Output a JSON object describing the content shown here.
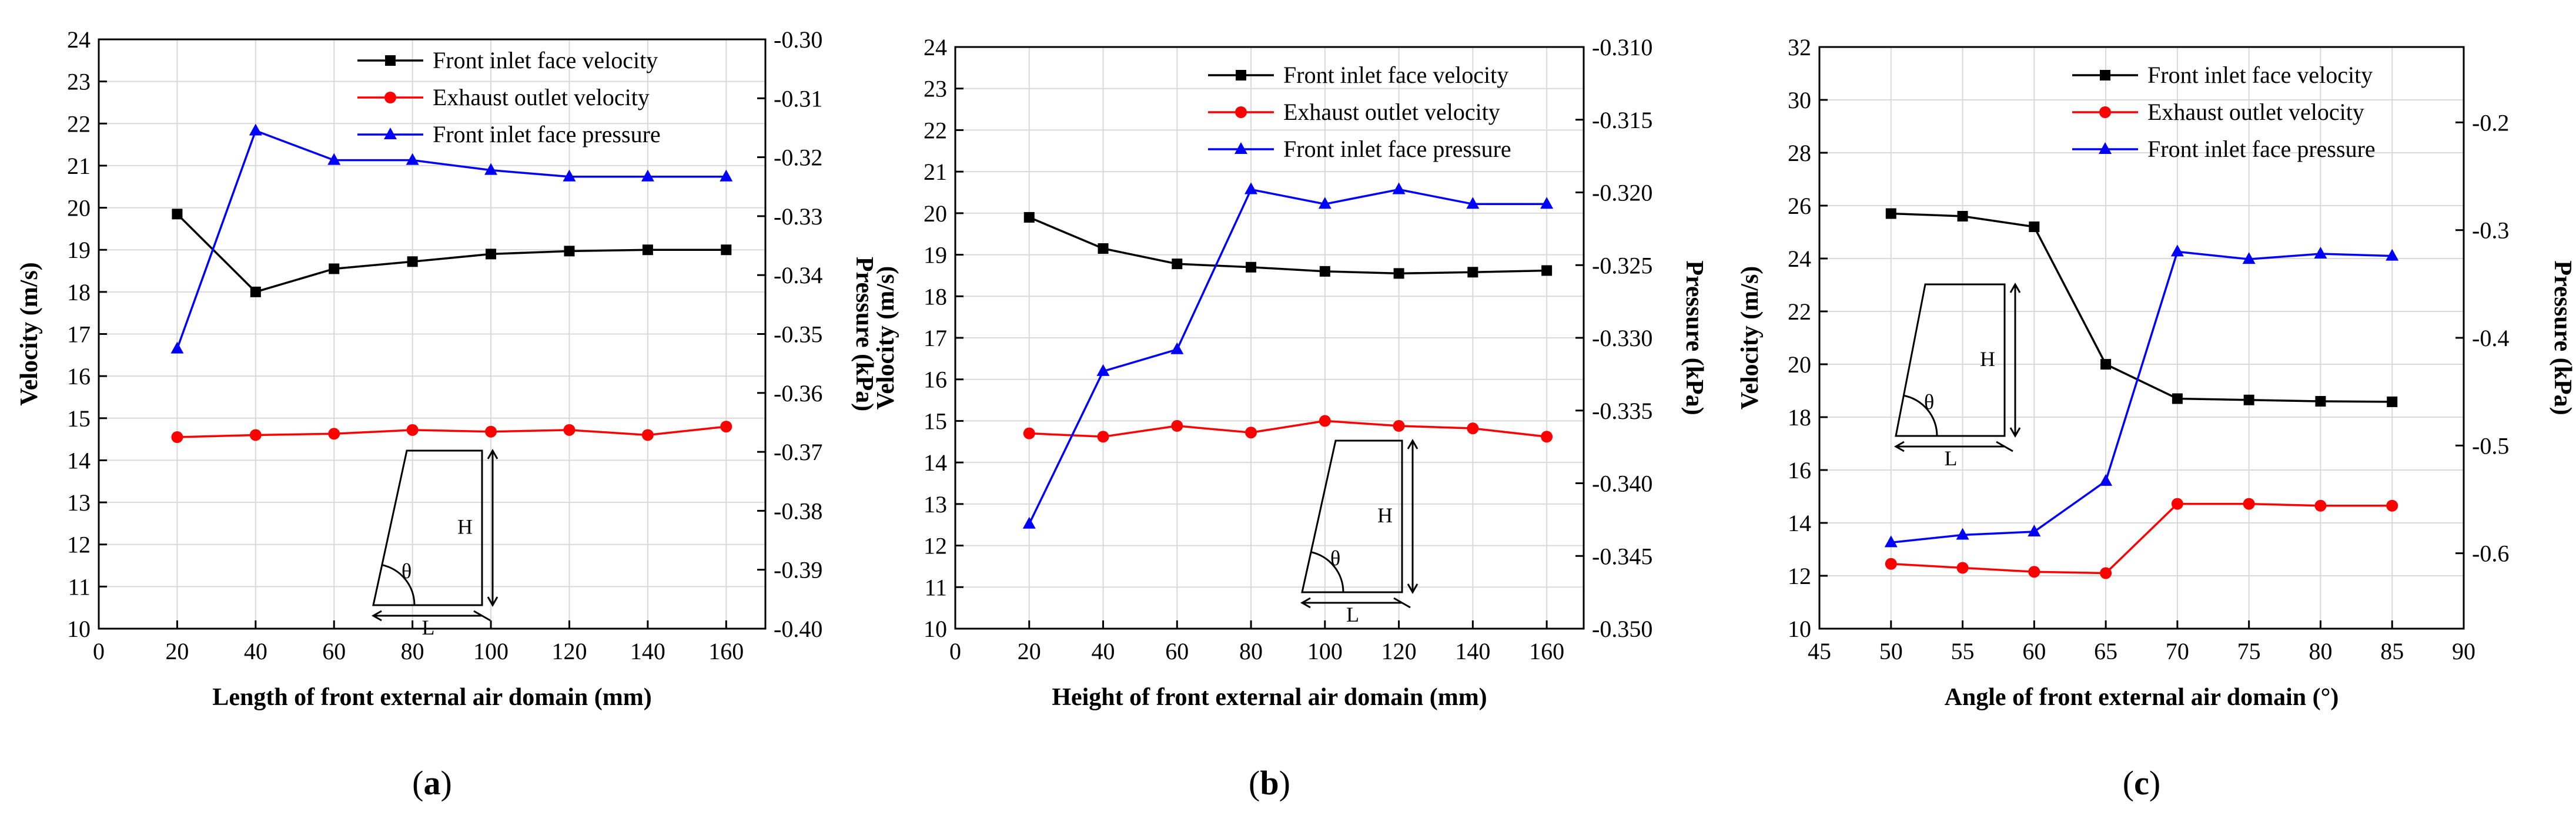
{
  "figure": {
    "panel_labels": [
      {
        "open": "(",
        "letter": "a",
        "close": ")"
      },
      {
        "open": "(",
        "letter": "b",
        "close": ")"
      },
      {
        "open": "(",
        "letter": "c",
        "close": ")"
      }
    ],
    "inset_labels": {
      "height": "H",
      "length": "L",
      "angle": "θ"
    }
  },
  "colors": {
    "front_inlet_velocity": "#000000",
    "exhaust_outlet_velocity": "#ff0000",
    "front_inlet_pressure": "#0000ff",
    "grid": "#d9d9d9"
  },
  "chart_data": [
    {
      "type": "line",
      "panel": "a",
      "xlabel": "Length of front external air domain (mm)",
      "ylabel": "Velocity (m/s)",
      "y2label": "Pressure (kPa)",
      "xlim": [
        0,
        170
      ],
      "ylim": [
        10,
        24
      ],
      "y2lim": [
        -0.4,
        -0.3
      ],
      "xticks": [
        "0",
        "20",
        "40",
        "60",
        "80",
        "100",
        "120",
        "140",
        "160"
      ],
      "yticks": [
        "10",
        "11",
        "12",
        "13",
        "14",
        "15",
        "16",
        "17",
        "18",
        "19",
        "20",
        "21",
        "22",
        "23",
        "24"
      ],
      "y2ticks": [
        "-0.40",
        "-0.39",
        "-0.38",
        "-0.37",
        "-0.36",
        "-0.35",
        "-0.34",
        "-0.33",
        "-0.32",
        "-0.31",
        "-0.30"
      ],
      "x": [
        20,
        40,
        60,
        80,
        100,
        120,
        140,
        160
      ],
      "series": [
        {
          "name": "Front inlet face velocity",
          "axis": "left",
          "marker": "square",
          "values": [
            19.85,
            18.0,
            18.55,
            18.72,
            18.9,
            18.97,
            19.0,
            19.0
          ]
        },
        {
          "name": "Exhaust outlet velocity",
          "axis": "left",
          "marker": "circle",
          "values": [
            14.55,
            14.6,
            14.63,
            14.72,
            14.68,
            14.72,
            14.6,
            14.8
          ]
        },
        {
          "name": "Front inlet face pressure",
          "axis": "right",
          "marker": "triangle",
          "values": [
            -0.3525,
            -0.3155,
            -0.3205,
            -0.3205,
            -0.3222,
            -0.3233,
            -0.3233,
            -0.3233
          ]
        }
      ]
    },
    {
      "type": "line",
      "panel": "b",
      "xlabel": "Height of front external air domain (mm)",
      "ylabel": "Velocity (m/s)",
      "y2label": "Pressure (kPa)",
      "xlim": [
        0,
        170
      ],
      "ylim": [
        10,
        24
      ],
      "y2lim": [
        -0.35,
        -0.31
      ],
      "xticks": [
        "0",
        "20",
        "40",
        "60",
        "80",
        "100",
        "120",
        "140",
        "160"
      ],
      "yticks": [
        "10",
        "11",
        "12",
        "13",
        "14",
        "15",
        "16",
        "17",
        "18",
        "19",
        "20",
        "21",
        "22",
        "23",
        "24"
      ],
      "y2ticks": [
        "-0.350",
        "-0.345",
        "-0.340",
        "-0.335",
        "-0.330",
        "-0.325",
        "-0.320",
        "-0.315",
        "-0.310"
      ],
      "x": [
        20,
        40,
        60,
        80,
        100,
        120,
        140,
        160
      ],
      "series": [
        {
          "name": "Front inlet face velocity",
          "axis": "left",
          "marker": "square",
          "values": [
            19.9,
            19.15,
            18.78,
            18.7,
            18.6,
            18.55,
            18.58,
            18.62
          ]
        },
        {
          "name": "Exhaust outlet velocity",
          "axis": "left",
          "marker": "circle",
          "values": [
            14.7,
            14.62,
            14.88,
            14.72,
            15.0,
            14.88,
            14.82,
            14.62
          ]
        },
        {
          "name": "Front inlet face pressure",
          "axis": "right",
          "marker": "triangle",
          "values": [
            -0.3428,
            -0.3323,
            -0.3308,
            -0.3198,
            -0.3208,
            -0.3198,
            -0.3208,
            -0.3208
          ]
        }
      ]
    },
    {
      "type": "line",
      "panel": "c",
      "xlabel": "Angle of front external air domain (°)",
      "ylabel": "Velocity (m/s)",
      "y2label": "Pressure (kPa)",
      "xlim": [
        45,
        90
      ],
      "ylim": [
        10,
        32
      ],
      "y2lim": [
        -0.67,
        -0.13
      ],
      "xticks": [
        "45",
        "50",
        "55",
        "60",
        "65",
        "70",
        "75",
        "80",
        "85",
        "90"
      ],
      "yticks": [
        "10",
        "12",
        "14",
        "16",
        "18",
        "20",
        "22",
        "24",
        "26",
        "28",
        "30",
        "32"
      ],
      "y2ticks": [
        "-0.6",
        "-0.5",
        "-0.4",
        "-0.3",
        "-0.2"
      ],
      "x": [
        50,
        55,
        60,
        65,
        70,
        75,
        80,
        85
      ],
      "series": [
        {
          "name": "Front inlet face velocity",
          "axis": "left",
          "marker": "square",
          "values": [
            25.7,
            25.6,
            25.2,
            20.0,
            18.7,
            18.65,
            18.6,
            18.58
          ]
        },
        {
          "name": "Exhaust outlet velocity",
          "axis": "left",
          "marker": "circle",
          "values": [
            12.45,
            12.3,
            12.15,
            12.1,
            14.72,
            14.72,
            14.65,
            14.65
          ]
        },
        {
          "name": "Front inlet face pressure",
          "axis": "right",
          "marker": "triangle",
          "values": [
            -0.59,
            -0.583,
            -0.58,
            -0.533,
            -0.32,
            -0.327,
            -0.322,
            -0.324
          ]
        }
      ]
    }
  ]
}
